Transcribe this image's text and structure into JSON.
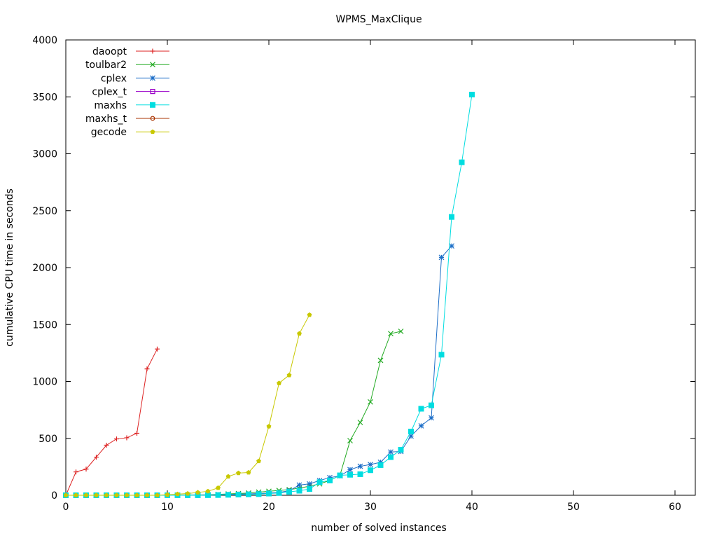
{
  "chart_data": {
    "type": "line",
    "title": "WPMS_MaxClique",
    "xlabel": "number of solved instances",
    "ylabel": "cumulative CPU time in seconds",
    "xlim": [
      0,
      62
    ],
    "ylim": [
      0,
      4000
    ],
    "xticks": [
      0,
      10,
      20,
      30,
      40,
      50,
      60
    ],
    "yticks": [
      0,
      500,
      1000,
      1500,
      2000,
      2500,
      3000,
      3500,
      4000
    ],
    "grid": false,
    "legend_position": "top-left",
    "series": [
      {
        "name": "daoopt",
        "color": "#dd2222",
        "marker": "plus",
        "x": [
          0,
          1,
          2,
          3,
          4,
          5,
          6,
          7,
          8,
          9
        ],
        "y": [
          0,
          205,
          230,
          335,
          440,
          495,
          505,
          545,
          1110,
          1285
        ]
      },
      {
        "name": "toulbar2",
        "color": "#22aa22",
        "marker": "cross",
        "x": [
          0,
          1,
          2,
          3,
          4,
          5,
          6,
          7,
          8,
          9,
          10,
          11,
          12,
          13,
          14,
          15,
          16,
          17,
          18,
          19,
          20,
          21,
          22,
          23,
          24,
          25,
          26,
          27,
          28,
          29,
          30,
          31,
          32,
          33
        ],
        "y": [
          0,
          0,
          0,
          0,
          0,
          0,
          0,
          0,
          0,
          0,
          0,
          1,
          2,
          3,
          5,
          8,
          12,
          15,
          20,
          28,
          35,
          42,
          50,
          62,
          80,
          100,
          130,
          175,
          480,
          640,
          820,
          1185,
          1420,
          1440
        ]
      },
      {
        "name": "cplex",
        "color": "#1e6fc8",
        "marker": "star",
        "x": [
          0,
          1,
          2,
          3,
          4,
          5,
          6,
          7,
          8,
          9,
          10,
          11,
          12,
          13,
          14,
          15,
          16,
          17,
          18,
          19,
          20,
          21,
          22,
          23,
          24,
          25,
          26,
          27,
          28,
          29,
          30,
          31,
          32,
          33,
          34,
          35,
          36,
          37,
          38
        ],
        "y": [
          0,
          0,
          0,
          0,
          0,
          0,
          0,
          0,
          0,
          0,
          0,
          0,
          1,
          2,
          3,
          5,
          8,
          10,
          12,
          15,
          20,
          25,
          40,
          90,
          100,
          130,
          155,
          170,
          225,
          255,
          270,
          290,
          380,
          385,
          520,
          610,
          680,
          2090,
          2190
        ]
      },
      {
        "name": "cplex_t",
        "color": "#9a00c8",
        "marker": "open-square",
        "x": [],
        "y": []
      },
      {
        "name": "maxhs",
        "color": "#00dde0",
        "marker": "filled-square",
        "x": [
          0,
          1,
          2,
          3,
          4,
          5,
          6,
          7,
          8,
          9,
          10,
          11,
          12,
          13,
          14,
          15,
          16,
          17,
          18,
          19,
          20,
          21,
          22,
          23,
          24,
          25,
          26,
          27,
          28,
          29,
          30,
          31,
          32,
          33,
          34,
          35,
          36,
          37,
          38,
          39,
          40
        ],
        "y": [
          0,
          0,
          0,
          0,
          0,
          0,
          0,
          0,
          0,
          0,
          0,
          0,
          0,
          0,
          1,
          2,
          4,
          6,
          8,
          10,
          15,
          20,
          30,
          40,
          55,
          115,
          130,
          175,
          180,
          185,
          220,
          265,
          335,
          400,
          560,
          760,
          790,
          1235,
          2445,
          2925,
          3520
        ]
      },
      {
        "name": "maxhs_t",
        "color": "#aa3300",
        "marker": "open-circle",
        "x": [],
        "y": []
      },
      {
        "name": "gecode",
        "color": "#c8c800",
        "marker": "filled-pentagon",
        "x": [
          0,
          1,
          2,
          3,
          4,
          5,
          6,
          7,
          8,
          9,
          10,
          11,
          12,
          13,
          14,
          15,
          16,
          17,
          18,
          19,
          20,
          21,
          22,
          23,
          24
        ],
        "y": [
          0,
          0,
          0,
          0,
          0,
          0,
          0,
          0,
          0,
          0,
          5,
          10,
          15,
          25,
          35,
          65,
          165,
          195,
          200,
          300,
          605,
          985,
          1055,
          1420,
          1585
        ]
      }
    ]
  }
}
